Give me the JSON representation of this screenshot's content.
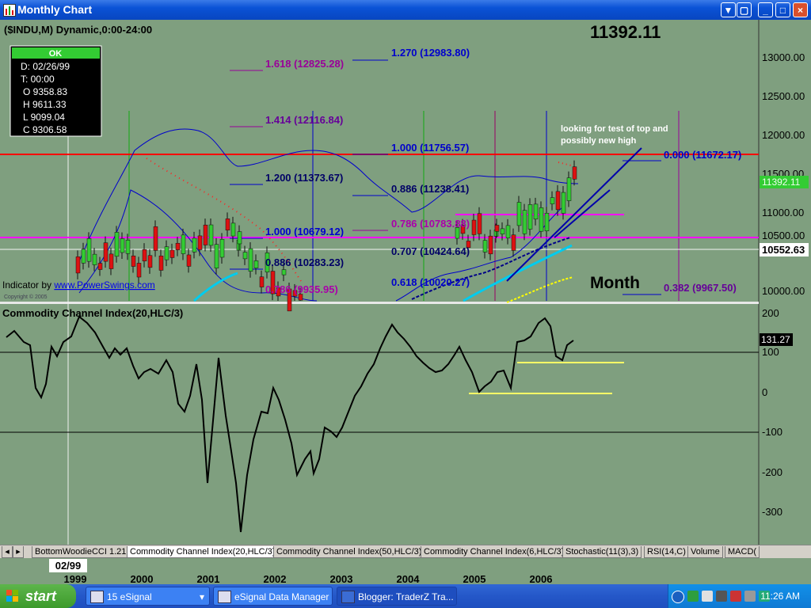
{
  "window": {
    "title": "Monthly Chart",
    "buttons": {
      "minimize": "_",
      "maximize": "□",
      "close": "×"
    }
  },
  "chart": {
    "symbol_header": "($INDU,M) Dynamic,0:00-24:00",
    "current_price_big": "11392.11",
    "ohlc_box": {
      "ok": "OK",
      "date": "D: 02/26/99",
      "time": "T: 00:00",
      "open": "O 9358.83",
      "high": "H 9611.33",
      "low": "L 9099.04",
      "close": "C 9306.58"
    },
    "indicator_credit_prefix": "Indicator by ",
    "indicator_credit_link": "www.PowerSwings.com",
    "copyright": "Copyright © 2005",
    "annotation": [
      "looking for test of top and",
      "possibly new high"
    ],
    "period_label": "Month",
    "last_price_label": "11392.11",
    "crosshair_price_label": "10552.63",
    "fib_labels": {
      "f1618": "1.618 (12825.28)",
      "f1270": "1.270 (12983.80)",
      "f1414": "1.414 (12116.84)",
      "f1000_top": "1.000 (11756.57)",
      "f0000": "0.000 (11672.17)",
      "f1200": "1.200 (11373.67)",
      "f0886_top": "0.886 (11238.41)",
      "f0786": "0.786 (10783.88)",
      "f1000_mid": "1.000 (10679.12)",
      "f0707": "0.707 (10424.64)",
      "f0886_low": "0.886 (10283.23)",
      "f0618": "0.618 (10020.27)",
      "f0786_low": "0.786 (9935.95)",
      "f0382": "0.382 (9967.50)"
    },
    "price_axis": [
      "13000.00",
      "12500.00",
      "12000.00",
      "11500.00",
      "11000.00",
      "10500.00",
      "10000.00"
    ],
    "cci": {
      "title": "Commodity Channel Index(20,HLC/3)",
      "value_label": "131.27",
      "axis": [
        "200",
        "100",
        "0",
        "-100",
        "-200",
        "-300"
      ]
    },
    "time_axis": {
      "cursor_label": "02/99",
      "years": [
        "1999",
        "2000",
        "2001",
        "2002",
        "2003",
        "2004",
        "2005",
        "2006"
      ]
    },
    "colors": {
      "background": "#7f9f7f",
      "up_candle": "#33cc33",
      "down_candle": "#dd1111",
      "resistance": "#ff0000",
      "support": "#ff00ff",
      "bollinger": "#0000cc",
      "cci_line": "#000000"
    }
  },
  "tabs": [
    "BottomWoodieCCI 1.21",
    "Commodity Channel Index(20,HLC/3)",
    "Commodity Channel Index(50,HLC/3)",
    "Commodity Channel Index(6,HLC/3)",
    "Stochastic(11(3),3)",
    "RSI(14,C)",
    "Volume",
    "MACD("
  ],
  "taskbar": {
    "start": "start",
    "items": [
      "15 eSignal",
      "eSignal Data Manager",
      "Blogger: TraderZ Tra..."
    ],
    "clock": "11:26 AM"
  }
}
